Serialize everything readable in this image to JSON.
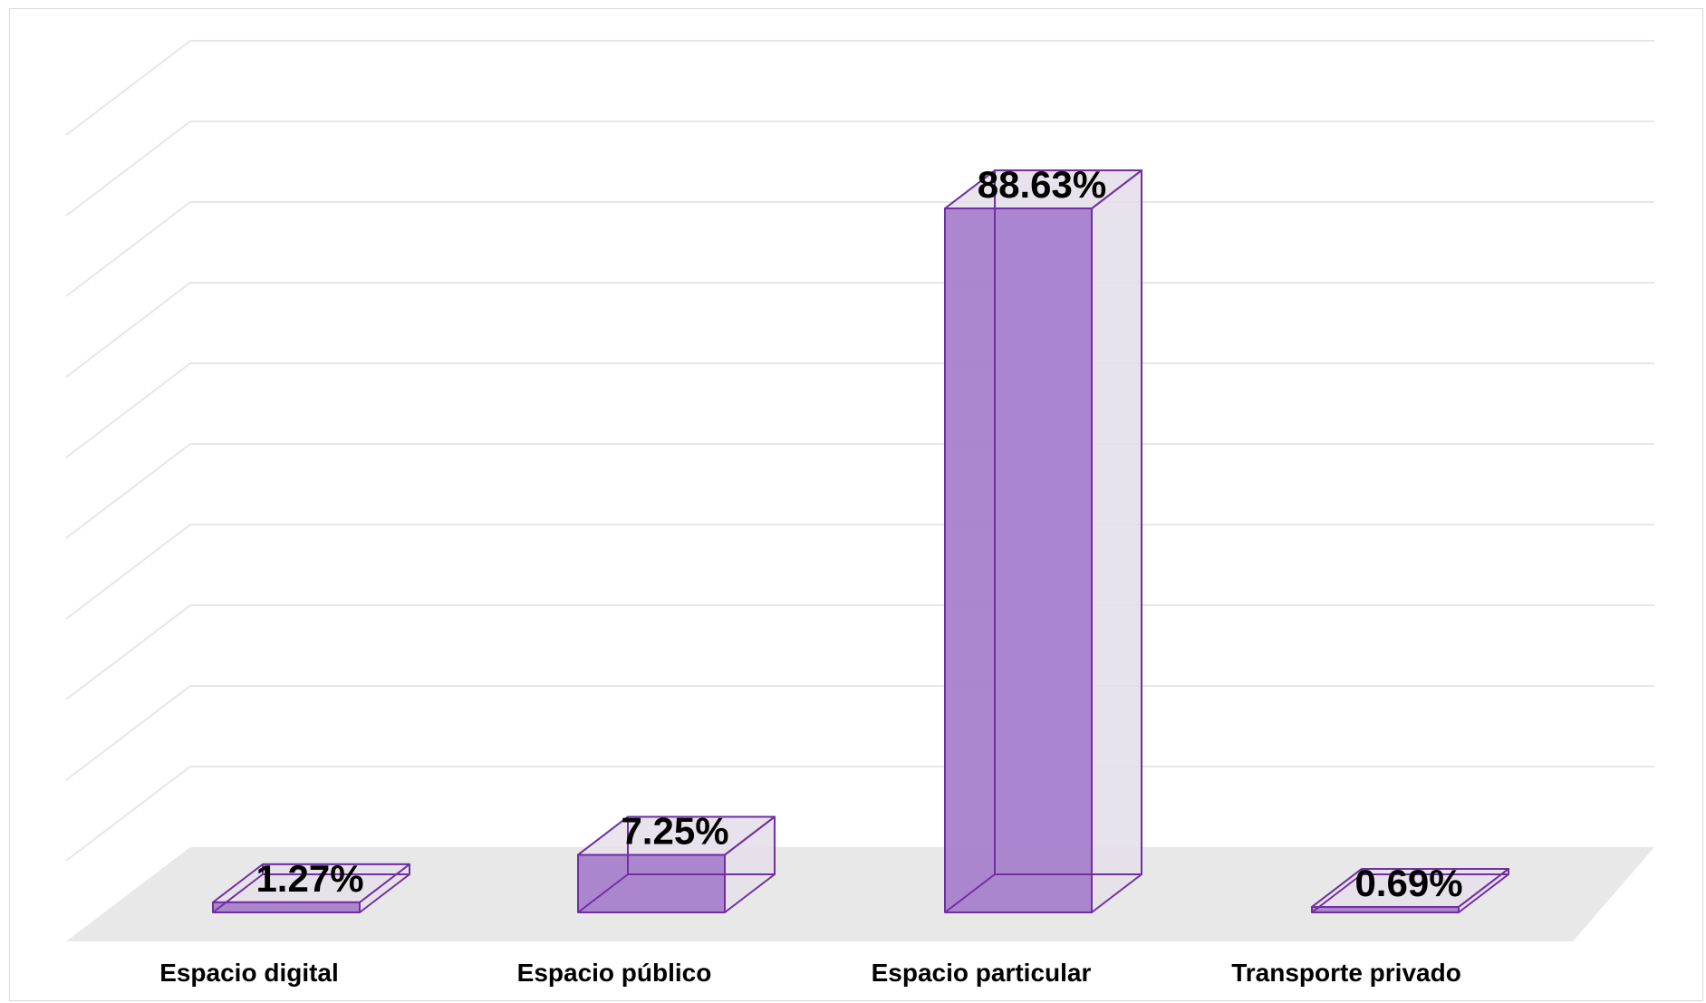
{
  "chart_data": {
    "type": "bar",
    "style": "3d-column",
    "categories": [
      "Espacio digital",
      "Espacio público",
      "Espacio particular",
      "Transporte privado"
    ],
    "values": [
      1.27,
      7.25,
      88.63,
      0.69
    ],
    "data_labels": [
      "1.27%",
      "7.25%",
      "88.63%",
      "0.69%"
    ],
    "title": "",
    "xlabel": "",
    "ylabel": "",
    "ylim": [
      0,
      100
    ],
    "grid": true,
    "legend": "none",
    "colors": {
      "bar_front": "#a97fcd",
      "bar_edge": "#7030a0",
      "bar_depth": "#e6e0ea",
      "floor": "#e8e8e8",
      "gridline": "#e6e6e6"
    }
  }
}
